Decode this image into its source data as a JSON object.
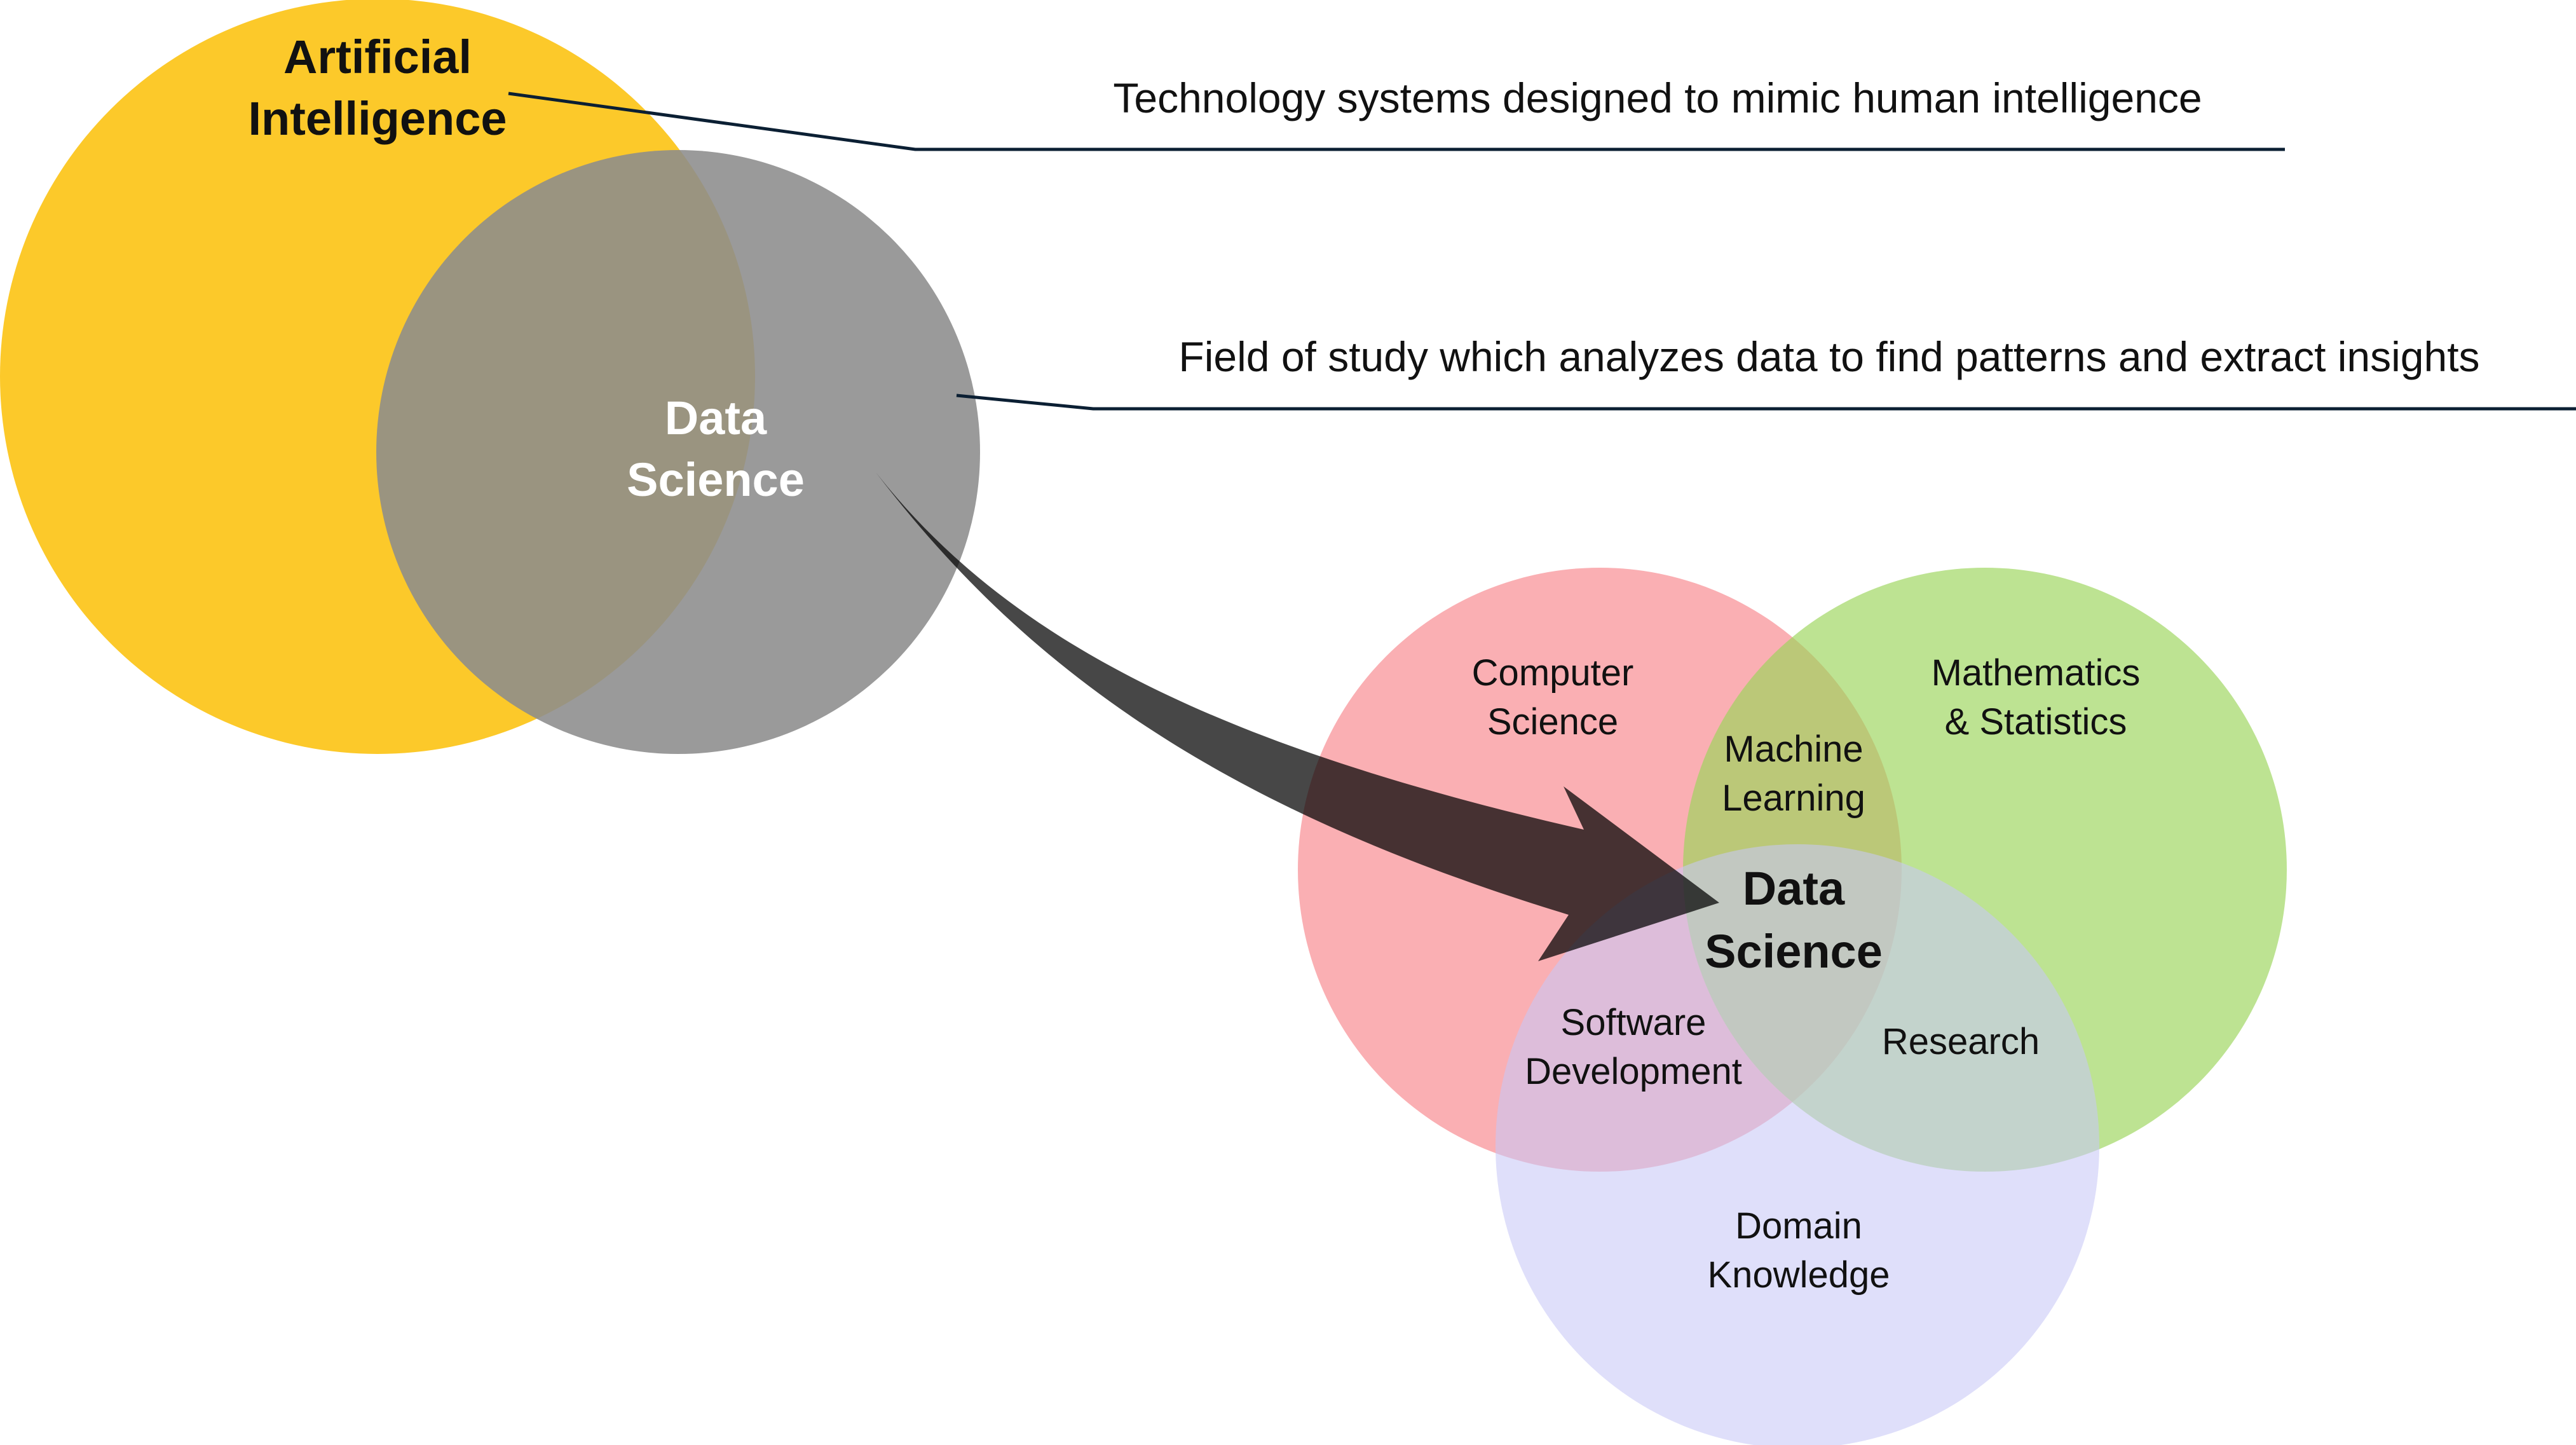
{
  "colors": {
    "ai_circle": "#FCC92A",
    "ds_circle": "#8C8C8C",
    "cs_circle": "#F7868C",
    "math_circle": "#9BD45A",
    "domain_circle": "#C8C8F7",
    "arrow": "#000000",
    "leader_line": "#0B1F33",
    "text_dark": "#111111",
    "text_white": "#FFFFFF"
  },
  "left_venn": {
    "ai_label_line1": "Artificial",
    "ai_label_line2": "Intelligence",
    "ds_label_line1": "Data",
    "ds_label_line2": "Science"
  },
  "annotations": {
    "ai_definition": "Technology systems designed to mimic human intelligence",
    "ds_definition": "Field of study which analyzes data to find patterns and extract insights"
  },
  "right_venn": {
    "cs_line1": "Computer",
    "cs_line2": "Science",
    "math_line1": "Mathematics",
    "math_line2": "& Statistics",
    "domain_line1": "Domain",
    "domain_line2": "Knowledge",
    "ml_line1": "Machine",
    "ml_line2": "Learning",
    "sw_line1": "Software",
    "sw_line2": "Development",
    "research": "Research",
    "center_line1": "Data",
    "center_line2": "Science"
  }
}
